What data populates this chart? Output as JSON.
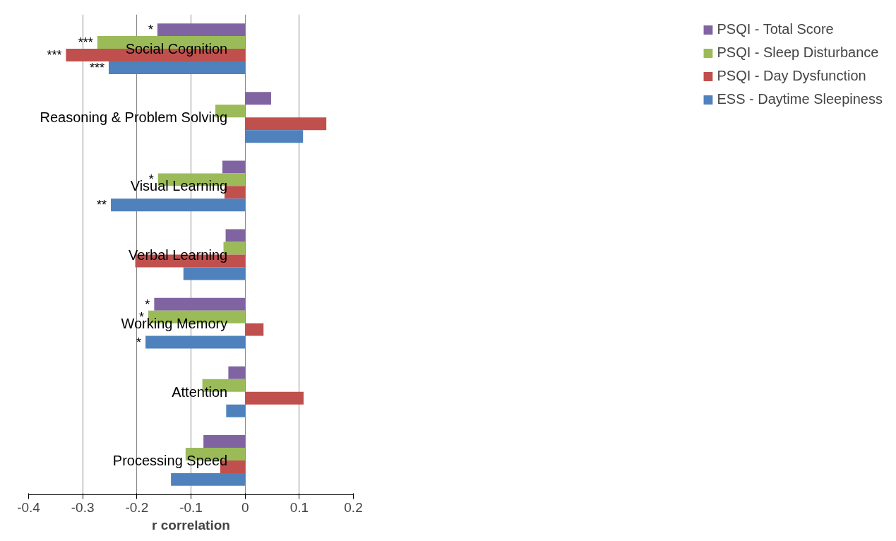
{
  "chart_data": {
    "type": "bar",
    "orientation": "horizontal",
    "xlabel": "r correlation",
    "categories": [
      "Social Cognition",
      "Reasoning & Problem Solving",
      "Visual Learning",
      "Verbal Learning",
      "Working Memory",
      "Attention",
      "Processing Speed"
    ],
    "series": [
      {
        "name": "PSQI - Total Score",
        "color": "#8064a2",
        "values": [
          -0.162,
          0.048,
          -0.042,
          -0.036,
          -0.168,
          -0.031,
          -0.077
        ],
        "value_labels": [
          "*",
          null,
          null,
          null,
          "*",
          null,
          null
        ]
      },
      {
        "name": "PSQI - Sleep Disturbance",
        "color": "#9bbb59",
        "values": [
          -0.273,
          -0.055,
          -0.161,
          -0.04,
          -0.179,
          -0.079,
          -0.11
        ],
        "value_labels": [
          "***",
          null,
          "*",
          null,
          "*",
          null,
          null
        ]
      },
      {
        "name": "PSQI - Day Dysfunction",
        "color": "#c0504d",
        "values": [
          -0.331,
          0.15,
          -0.038,
          -0.203,
          0.034,
          0.108,
          -0.046
        ],
        "value_labels": [
          "***",
          null,
          null,
          null,
          null,
          null,
          null
        ]
      },
      {
        "name": "ESS - Daytime Sleepiness",
        "color": "#4f81bd",
        "values": [
          -0.252,
          0.107,
          -0.248,
          -0.114,
          -0.184,
          -0.035,
          -0.137
        ],
        "value_labels": [
          "***",
          null,
          "**",
          null,
          "*",
          null,
          null
        ]
      }
    ],
    "xlim": [
      -0.4,
      0.2
    ],
    "xticks": [
      -0.4,
      -0.3,
      -0.2,
      -0.1,
      0,
      0.1,
      0.2
    ],
    "grid": "x",
    "legend": "right"
  }
}
